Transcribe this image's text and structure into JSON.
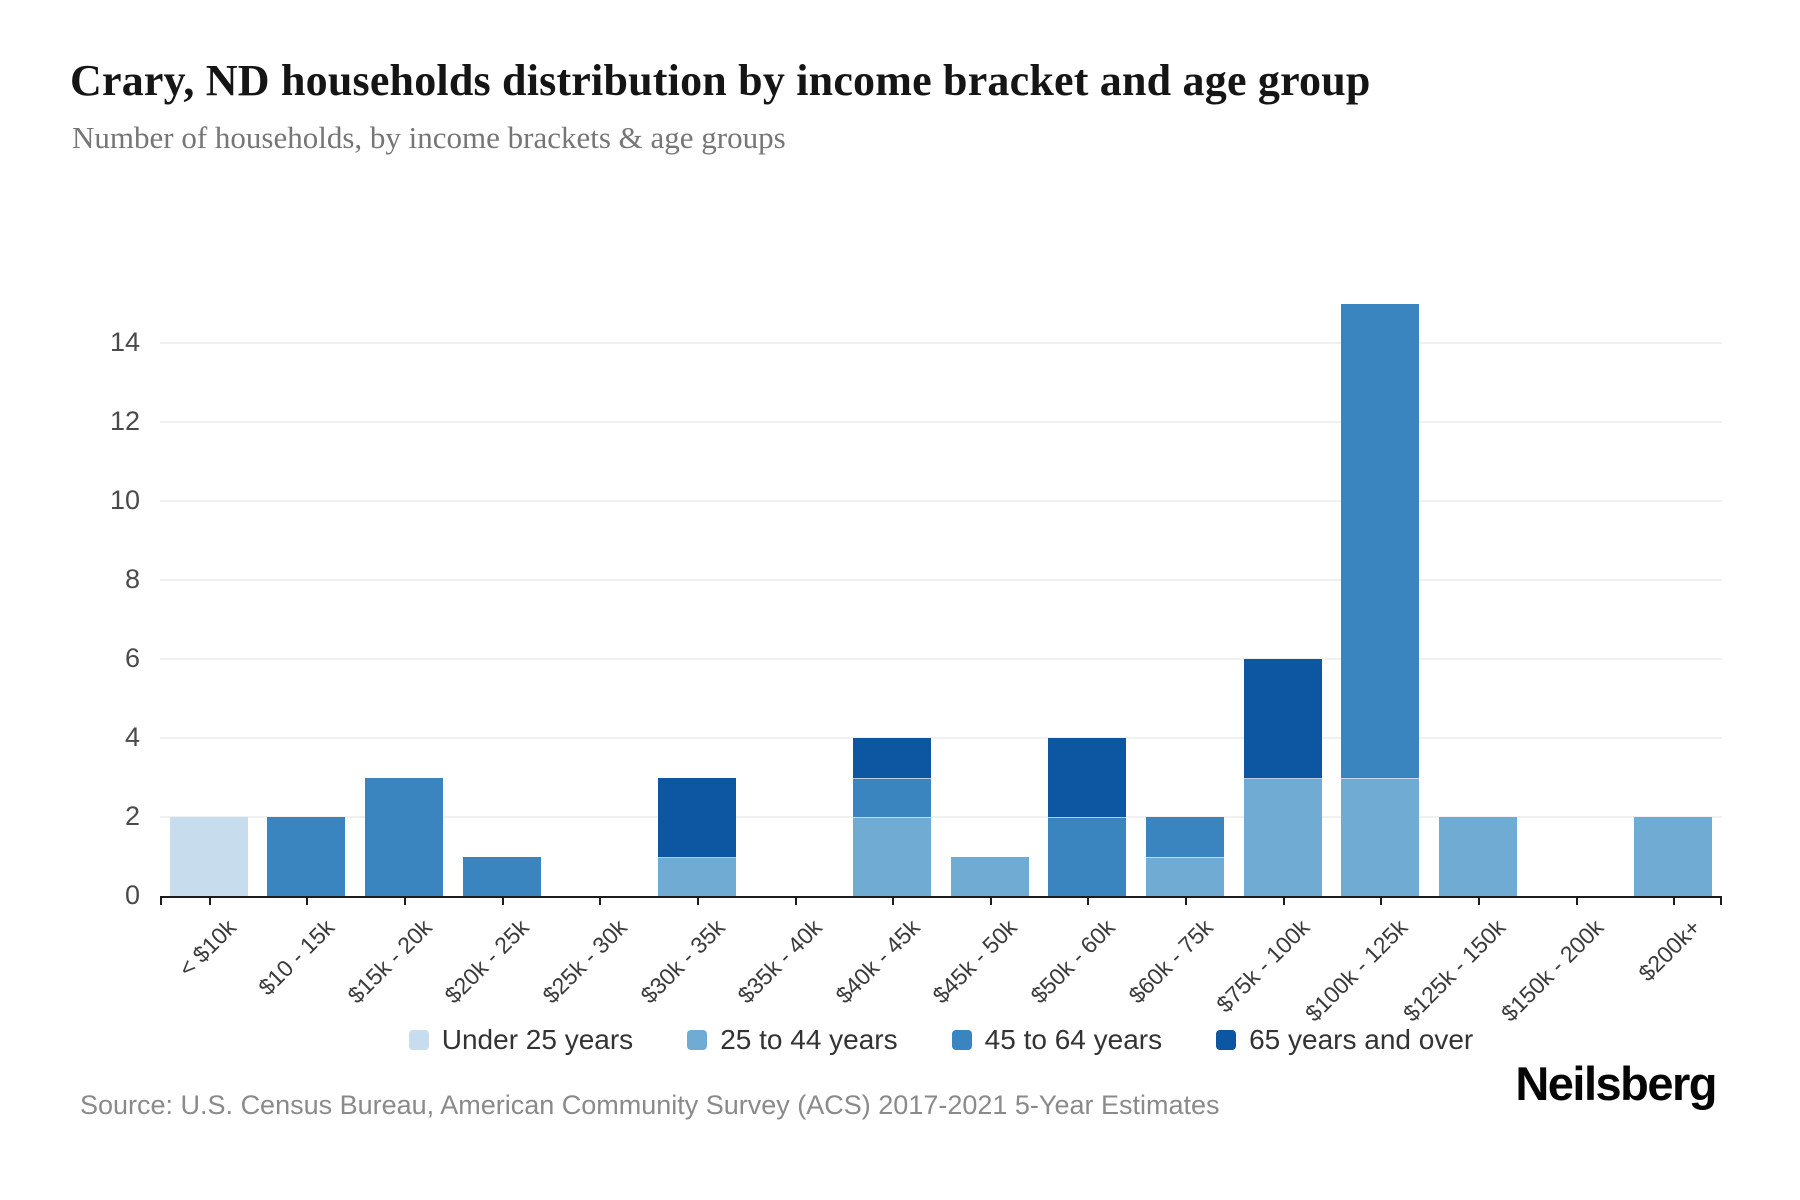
{
  "page": {
    "title": "Crary, ND households distribution by income bracket and age group",
    "subtitle": "Number of households, by income brackets & age groups",
    "source": "Source: U.S. Census Bureau, American Community Survey (ACS) 2017-2021 5-Year Estimates",
    "brand": "Neilsberg"
  },
  "chart_data": {
    "type": "bar",
    "stacked": true,
    "title": "Crary, ND households distribution by income bracket and age group",
    "subtitle": "Number of households, by income brackets & age groups",
    "xlabel": "",
    "ylabel": "Number of households",
    "categories": [
      "< $10k",
      "$10 - 15k",
      "$15k - 20k",
      "$20k - 25k",
      "$25k - 30k",
      "$30k - 35k",
      "$35k - 40k",
      "$40k - 45k",
      "$45k - 50k",
      "$50k - 60k",
      "$60k - 75k",
      "$75k - 100k",
      "$100k - 125k",
      "$125k - 150k",
      "$150k - 200k",
      "$200k+"
    ],
    "series": [
      {
        "name": "Under 25 years",
        "color": "#c7dcec",
        "values": [
          2,
          0,
          0,
          0,
          0,
          0,
          0,
          0,
          0,
          0,
          0,
          0,
          0,
          0,
          0,
          0
        ]
      },
      {
        "name": "25 to 44 years",
        "color": "#6fabd3",
        "values": [
          0,
          0,
          0,
          0,
          0,
          1,
          0,
          2,
          1,
          0,
          1,
          3,
          3,
          2,
          0,
          2
        ]
      },
      {
        "name": "45 to 64 years",
        "color": "#3a84bf",
        "values": [
          0,
          2,
          3,
          1,
          0,
          0,
          0,
          1,
          0,
          2,
          1,
          0,
          12,
          0,
          0,
          0
        ]
      },
      {
        "name": "65 years and over",
        "color": "#0d56a1",
        "values": [
          0,
          0,
          0,
          0,
          0,
          2,
          0,
          1,
          0,
          2,
          0,
          3,
          0,
          0,
          0,
          0
        ]
      }
    ],
    "totals": [
      2,
      2,
      3,
      1,
      0,
      3,
      0,
      4,
      1,
      4,
      2,
      6,
      15,
      2,
      0,
      2
    ],
    "y_ticks": [
      0,
      2,
      4,
      6,
      8,
      10,
      12,
      14
    ],
    "ylim": [
      0,
      15.5
    ],
    "grid": "horizontal",
    "legend_position": "bottom"
  }
}
